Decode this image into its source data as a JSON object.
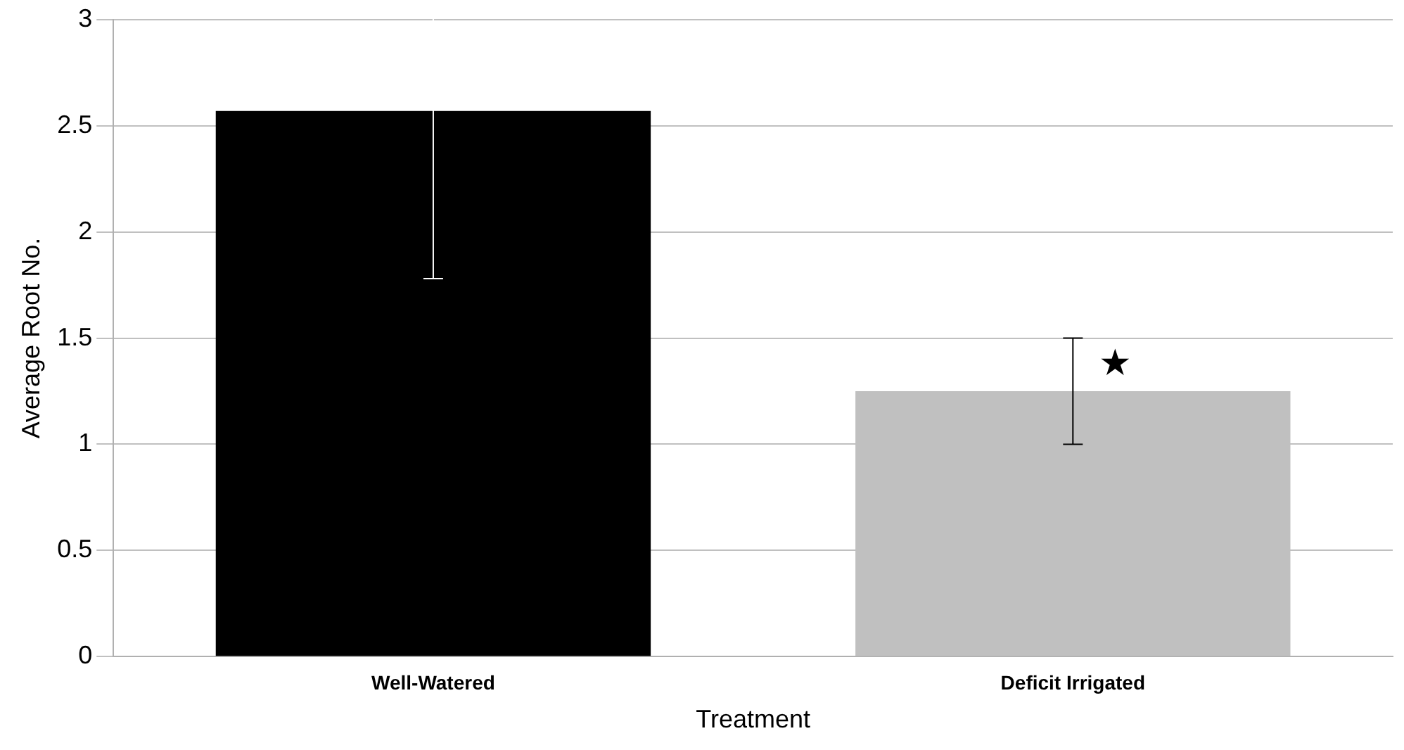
{
  "chart_data": {
    "type": "bar",
    "xlabel": "Treatment",
    "ylabel": "Average Root No.",
    "categories": [
      "Well-Watered",
      "Deficit Irrigated"
    ],
    "values": [
      2.57,
      1.25
    ],
    "colors": [
      "#000000",
      "#c0c0c0"
    ],
    "errors": [
      0.79,
      0.25
    ],
    "ylim": [
      0,
      3
    ],
    "yticks": [
      0,
      0.5,
      1,
      1.5,
      2,
      2.5,
      3
    ],
    "grid": "y",
    "annotations": [
      {
        "text": "★",
        "x": "Deficit Irrigated",
        "y": 1.37
      }
    ]
  }
}
